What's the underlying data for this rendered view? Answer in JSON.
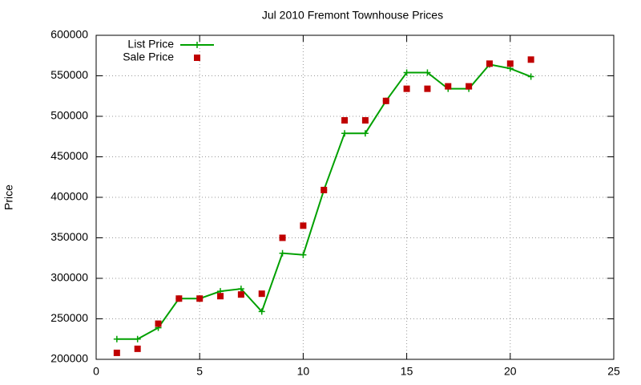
{
  "chart_data": {
    "type": "line",
    "title": "Jul 2010 Fremont Townhouse Prices",
    "y_label": "Price",
    "x": [
      1,
      2,
      3,
      4,
      5,
      6,
      7,
      8,
      9,
      10,
      11,
      12,
      13,
      14,
      15,
      16,
      17,
      18,
      19,
      20,
      21
    ],
    "series": [
      {
        "name": "List Price",
        "color": "#00a000",
        "line": true,
        "marker": "plus",
        "values": [
          225000,
          225000,
          239000,
          275000,
          275000,
          284000,
          287000,
          259000,
          331000,
          329000,
          409000,
          479000,
          479000,
          519000,
          554000,
          554000,
          534000,
          534000,
          564000,
          559000,
          549000
        ]
      },
      {
        "name": "Sale Price",
        "color": "#c00000",
        "line": false,
        "marker": "square",
        "values": [
          208000,
          213000,
          244000,
          275000,
          275000,
          278000,
          280000,
          281000,
          350000,
          365000,
          409000,
          495000,
          495000,
          519000,
          534000,
          534000,
          537000,
          537000,
          565000,
          565000,
          570000
        ]
      }
    ],
    "xlim": [
      0,
      25
    ],
    "xticks": [
      0,
      5,
      10,
      15,
      20,
      25
    ],
    "ylim": [
      200000,
      600000
    ],
    "yticks": [
      200000,
      250000,
      300000,
      350000,
      400000,
      450000,
      500000,
      550000,
      600000
    ],
    "grid": true,
    "legend": "top-left"
  }
}
